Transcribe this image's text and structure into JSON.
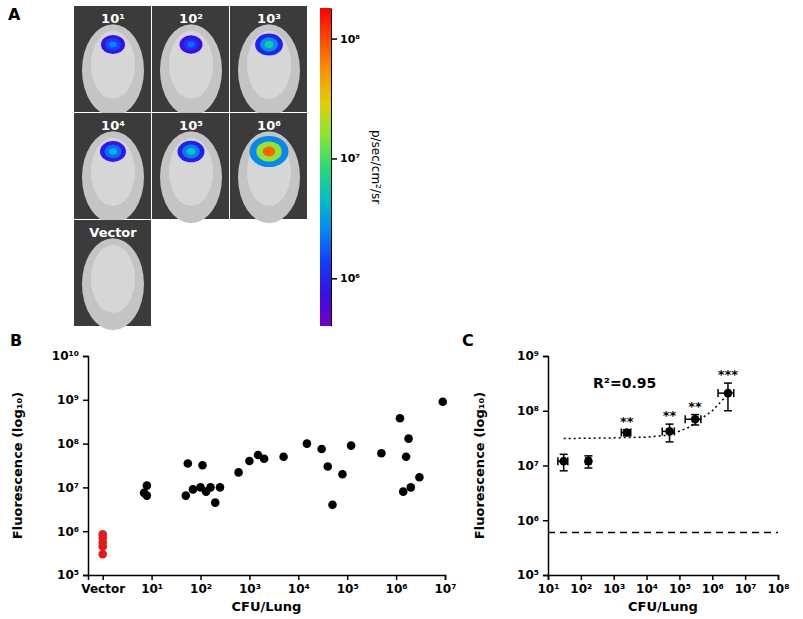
{
  "chart_data": [
    {
      "type": "image_grid",
      "panel": "A",
      "labels": [
        "10¹",
        "10²",
        "10³",
        "10⁴",
        "10⁵",
        "10⁶",
        "Vector"
      ],
      "peak_signal": [
        2500000.0,
        2000000.0,
        6000000.0,
        4000000.0,
        5000000.0,
        80000000.0,
        null
      ],
      "log": true,
      "colorbar": {
        "label": "p/sec/cm²/sr",
        "range": [
          400000.0,
          180000000.0
        ],
        "ticks": [
          {
            "value": 1000000.0,
            "label": "10⁶"
          },
          {
            "value": 10000000.0,
            "label": "10⁷"
          },
          {
            "value": 100000000.0,
            "label": "10⁸"
          }
        ]
      }
    },
    {
      "type": "scatter",
      "panel": "B",
      "x_label": "CFU/Lung",
      "y_label": "Fluorescence (log₁₀)",
      "log": true,
      "xlim": [
        0.5,
        10000000.0
      ],
      "xticks": [
        {
          "value": 1,
          "label": "Vector"
        },
        {
          "value": 10,
          "label": "10¹"
        },
        {
          "value": 100,
          "label": "10²"
        },
        {
          "value": 1000,
          "label": "10³"
        },
        {
          "value": 10000,
          "label": "10⁴"
        },
        {
          "value": 100000,
          "label": "10⁵"
        },
        {
          "value": 1000000,
          "label": "10⁶"
        },
        {
          "value": 10000000,
          "label": "10⁷"
        }
      ],
      "ylim": [
        100000.0,
        10000000000.0
      ],
      "yticks": [
        {
          "value": 100000.0,
          "label": "10⁵"
        },
        {
          "value": 1000000.0,
          "label": "10⁶"
        },
        {
          "value": 10000000.0,
          "label": "10⁷"
        },
        {
          "value": 100000000.0,
          "label": "10⁸"
        },
        {
          "value": 1000000000.0,
          "label": "10⁹"
        },
        {
          "value": 10000000000.0,
          "label": "10¹⁰"
        }
      ],
      "series": [
        {
          "color": "#e41a1c",
          "marker": "circle",
          "x": [
            1,
            1,
            1,
            1,
            1
          ],
          "values": [
            850000.0,
            700000.0,
            550000.0,
            450000.0,
            300000.0
          ]
        },
        {
          "color": "#000000",
          "marker": "circle",
          "x": [
            7,
            8,
            8,
            50,
            55,
            70,
            100,
            110,
            130,
            160,
            200,
            250,
            600,
            1000,
            1500,
            2000,
            5000,
            15000,
            30000,
            40000,
            50000,
            80000,
            120000,
            500000,
            1200000,
            1400000,
            1600000,
            1800000,
            2000000,
            3000000,
            9000000
          ],
          "values": [
            7500000.0,
            6500000.0,
            11000000.0,
            6500000.0,
            35000000.0,
            9000000.0,
            10000000.0,
            32000000.0,
            8000000.0,
            10000000.0,
            4500000.0,
            10000000.0,
            22000000.0,
            40000000.0,
            55000000.0,
            45000000.0,
            50000000.0,
            100000000.0,
            75000000.0,
            30000000.0,
            4000000.0,
            20000000.0,
            90000000.0,
            60000000.0,
            380000000.0,
            8000000.0,
            50000000.0,
            130000000.0,
            10000000.0,
            17000000.0,
            900000000.0
          ]
        }
      ]
    },
    {
      "type": "scatter",
      "panel": "C",
      "x_label": "CFU/Lung",
      "y_label": "Fluorescence (log₁₀)",
      "annotation": "R²=0.95",
      "log": true,
      "xlim": [
        10,
        100000000.0
      ],
      "xticks": [
        {
          "value": 10,
          "label": "10¹"
        },
        {
          "value": 100,
          "label": "10²"
        },
        {
          "value": 1000,
          "label": "10³"
        },
        {
          "value": 10000,
          "label": "10⁴"
        },
        {
          "value": 100000,
          "label": "10⁵"
        },
        {
          "value": 1000000,
          "label": "10⁶"
        },
        {
          "value": 10000000,
          "label": "10⁷"
        },
        {
          "value": 100000000,
          "label": "10⁸"
        }
      ],
      "ylim": [
        100000.0,
        1000000000.0
      ],
      "yticks": [
        {
          "value": 100000.0,
          "label": "10⁵"
        },
        {
          "value": 1000000.0,
          "label": "10⁶"
        },
        {
          "value": 10000000.0,
          "label": "10⁷"
        },
        {
          "value": 100000000.0,
          "label": "10⁸"
        },
        {
          "value": 1000000000.0,
          "label": "10⁹"
        }
      ],
      "series": [
        {
          "type": "scatter",
          "color": "#000000",
          "marker": "circle",
          "x": [
            30,
            170,
            2500,
            50000,
            300000,
            3000000
          ],
          "x_error": [
            10,
            30,
            800,
            20000,
            150000,
            1500000
          ],
          "values": [
            12000000.0,
            12000000.0,
            40000000.0,
            42000000.0,
            70000000.0,
            210000000.0
          ],
          "y_error": [
            4000000.0,
            3000000.0,
            5000000.0,
            15000000.0,
            15000000.0,
            110000000.0
          ],
          "significance": [
            null,
            null,
            "**",
            "**",
            "**",
            "***"
          ]
        },
        {
          "type": "line",
          "color": "#000000",
          "line_style": "dotted",
          "x": [
            30,
            1000,
            10000,
            50000,
            200000,
            1000000,
            3000000
          ],
          "values": [
            31000000.0,
            32000000.0,
            33000000.0,
            36000000.0,
            50000000.0,
            100000000.0,
            200000000.0
          ]
        },
        {
          "type": "line",
          "color": "#000000",
          "line_style": "dashed",
          "x": [
            10,
            100000000
          ],
          "values": [
            600000.0,
            600000.0
          ]
        }
      ]
    }
  ]
}
